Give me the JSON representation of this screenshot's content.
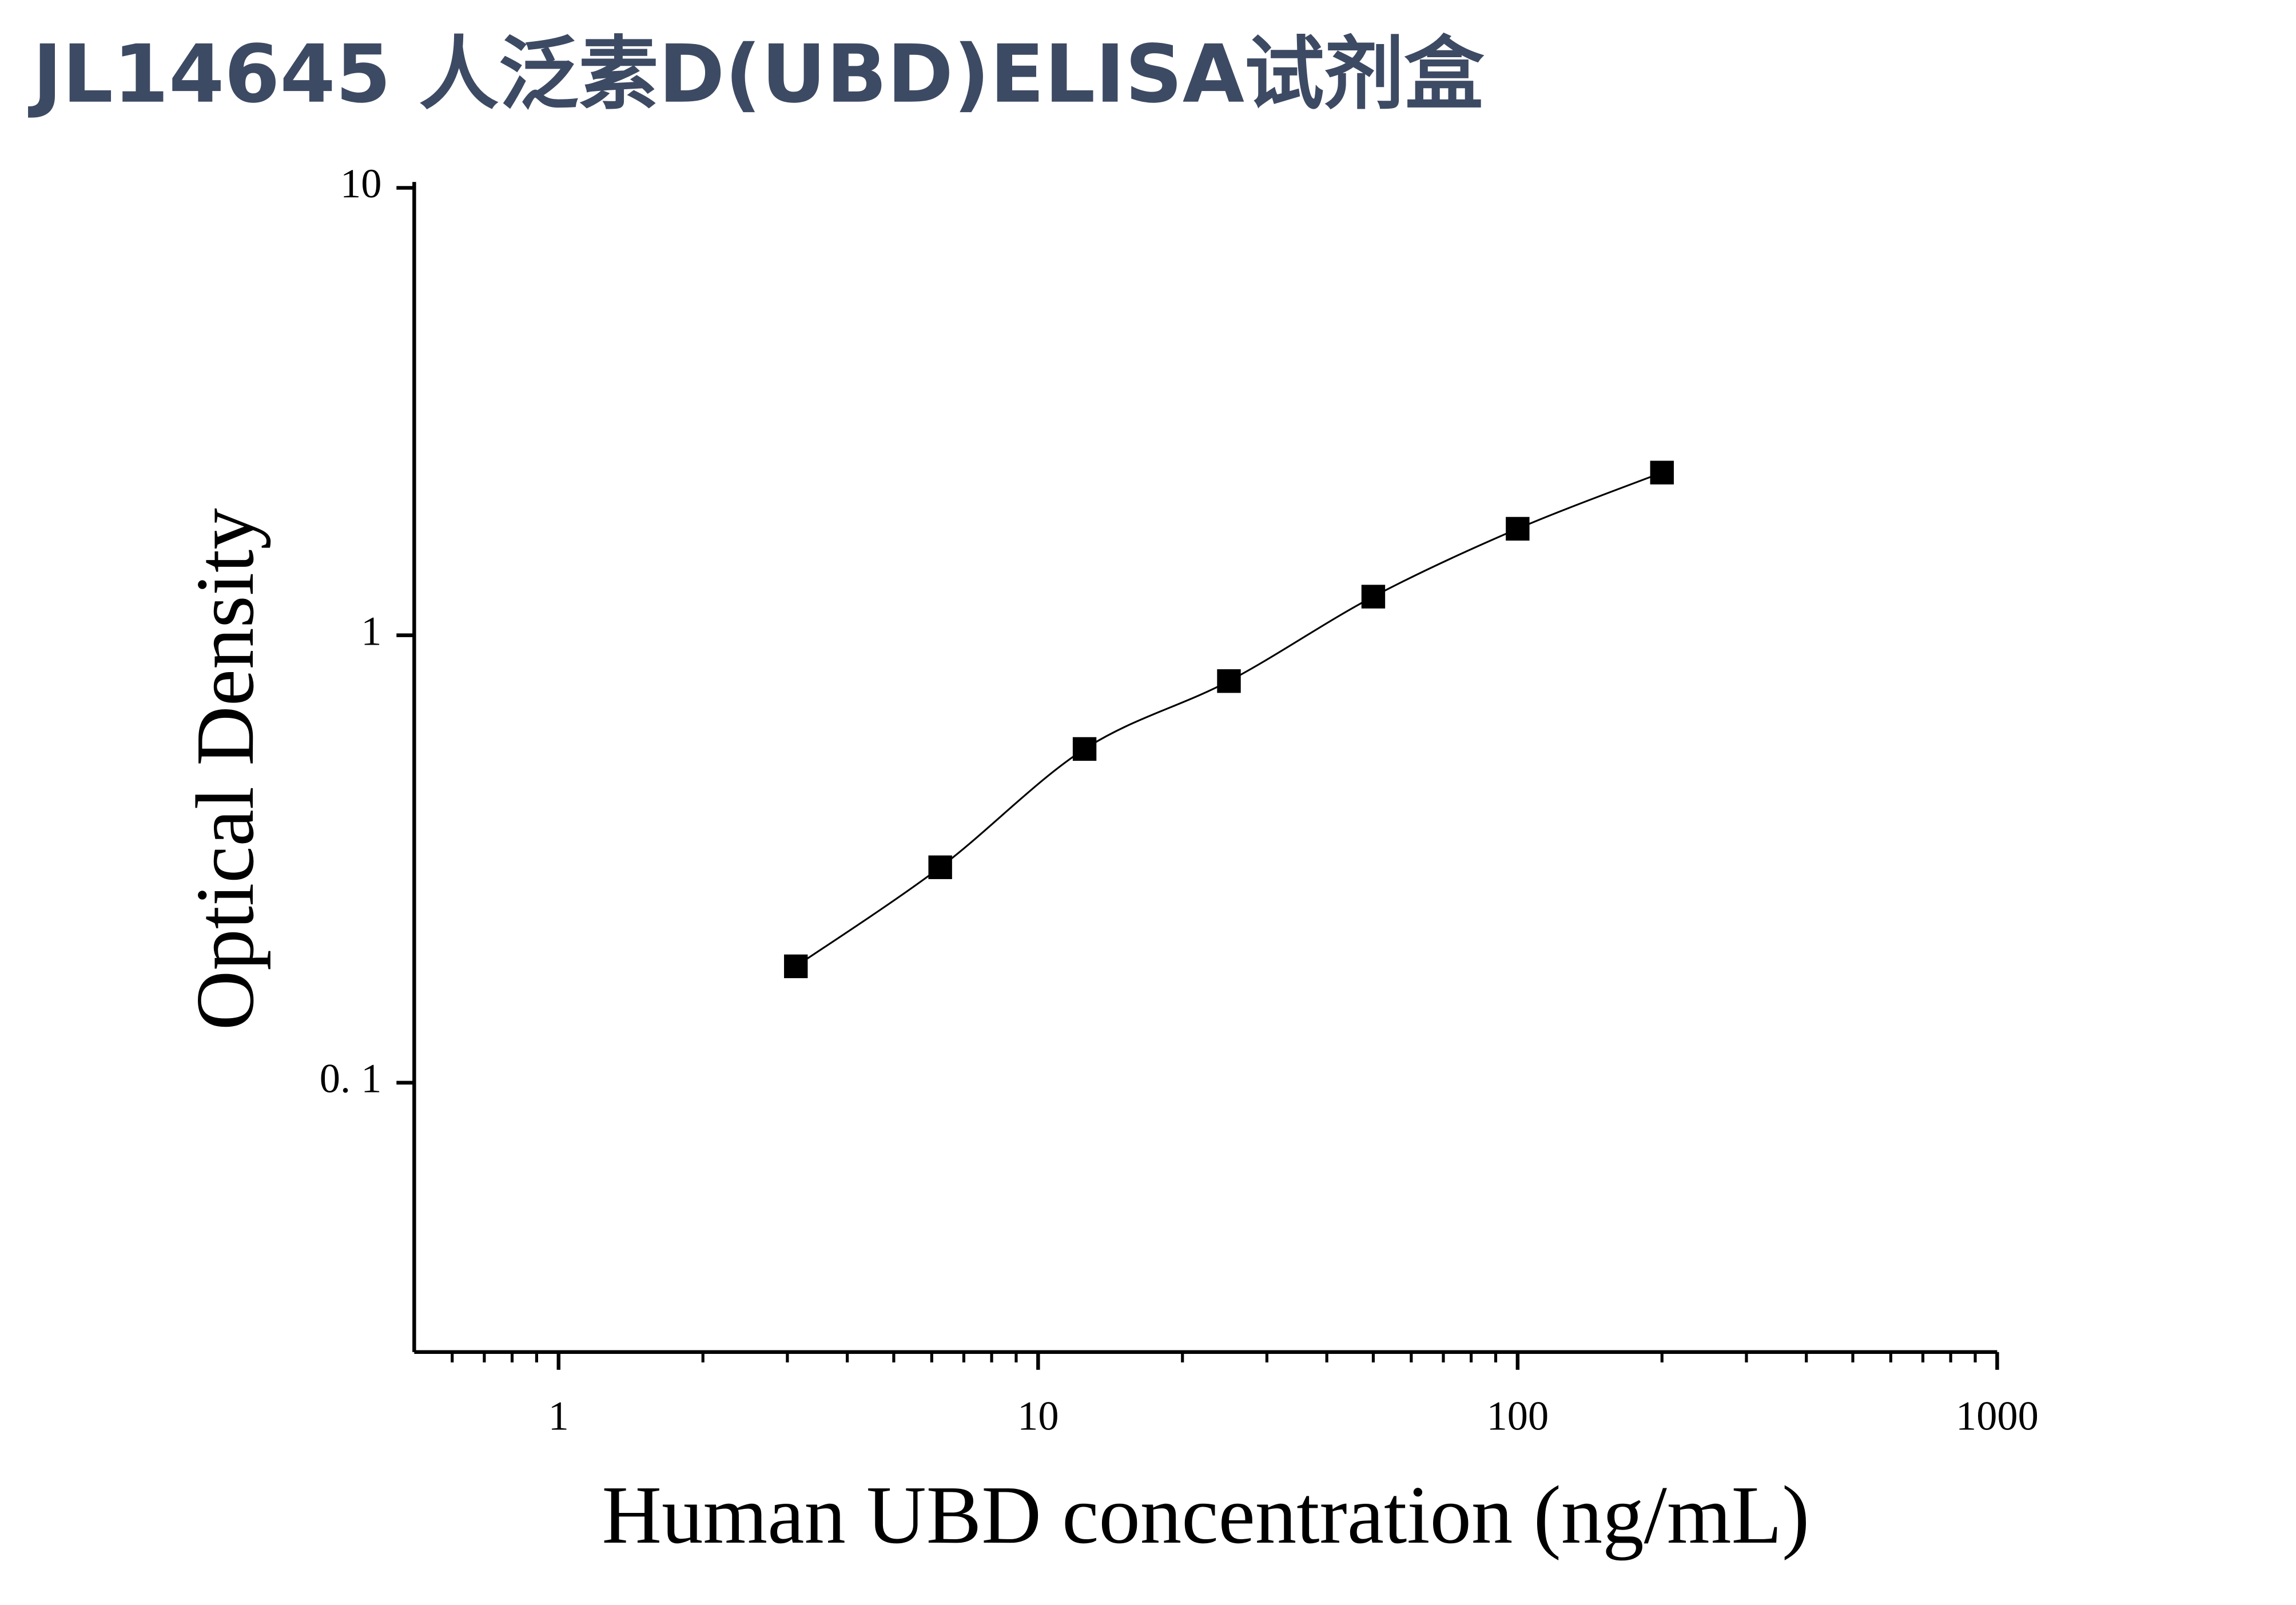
{
  "chart_data": {
    "type": "scatter",
    "title": "JL14645 人泛素D(UBD)ELISA试剂盒",
    "x_label": "Human UBD concentration (ng/mL)",
    "y_label": "Optical Density",
    "log_x": true,
    "log_y": true,
    "xlim": [
      0.5,
      1000
    ],
    "ylim": [
      0.025,
      10
    ],
    "xticks": [
      1,
      10,
      100,
      1000
    ],
    "xminorticks": [
      0.6,
      0.7,
      0.8,
      0.9,
      2,
      3,
      4,
      5,
      6,
      7,
      8,
      9,
      20,
      30,
      40,
      50,
      60,
      70,
      80,
      90,
      200,
      300,
      400,
      500,
      600,
      700,
      800,
      900
    ],
    "yticks": [
      {
        "value": 0.1,
        "label": "0. 1"
      },
      1,
      10
    ],
    "series": [
      {
        "color": "#000000",
        "line": true,
        "x": [
          3.125,
          6.25,
          12.5,
          25,
          50,
          100,
          200
        ],
        "values": [
          0.182,
          0.303,
          0.557,
          0.79,
          1.22,
          1.73,
          2.31
        ]
      }
    ]
  }
}
